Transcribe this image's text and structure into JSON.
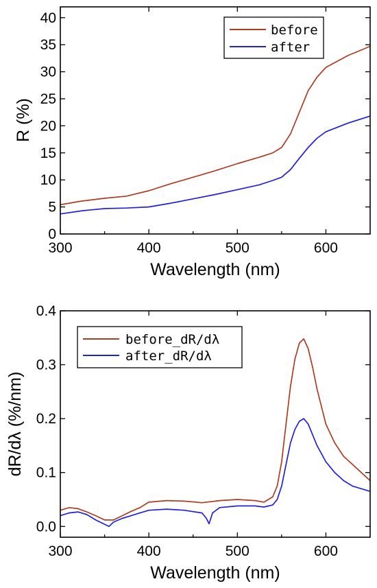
{
  "chart_data": [
    {
      "type": "line",
      "xlabel": "Wavelength (nm)",
      "ylabel": "R (%)",
      "xlim": [
        300,
        650
      ],
      "ylim": [
        0,
        42
      ],
      "xticks": [
        "300",
        "400",
        "500",
        "600"
      ],
      "xtick_values": [
        300,
        400,
        500,
        600
      ],
      "yticks": [
        "0",
        "5",
        "10",
        "15",
        "20",
        "25",
        "30",
        "35",
        "40"
      ],
      "ytick_values": [
        0,
        5,
        10,
        15,
        20,
        25,
        30,
        35,
        40
      ],
      "legend_position": "top-right",
      "series": [
        {
          "name": "before",
          "color": "#b03a1e",
          "x": [
            300,
            325,
            350,
            375,
            400,
            425,
            450,
            475,
            500,
            525,
            540,
            550,
            560,
            570,
            580,
            590,
            600,
            625,
            650
          ],
          "y": [
            5.4,
            6.1,
            6.6,
            7.0,
            8.0,
            9.3,
            10.5,
            11.7,
            13.0,
            14.2,
            15.0,
            16.0,
            18.5,
            22.5,
            26.5,
            29.0,
            30.8,
            33.0,
            34.7
          ]
        },
        {
          "name": "after",
          "color": "#1f1fdd",
          "x": [
            300,
            325,
            350,
            375,
            400,
            425,
            450,
            475,
            500,
            525,
            540,
            550,
            560,
            570,
            580,
            590,
            600,
            625,
            650
          ],
          "y": [
            3.7,
            4.3,
            4.7,
            4.8,
            5.0,
            5.7,
            6.5,
            7.3,
            8.2,
            9.1,
            9.9,
            10.5,
            11.9,
            14.0,
            16.0,
            17.7,
            18.9,
            20.5,
            21.8
          ]
        }
      ]
    },
    {
      "type": "line",
      "xlabel": "Wavelength (nm)",
      "ylabel": "dR/dλ (%/nm)",
      "xlim": [
        300,
        650
      ],
      "ylim": [
        -0.02,
        0.4
      ],
      "xticks": [
        "300",
        "400",
        "500",
        "600"
      ],
      "xtick_values": [
        300,
        400,
        500,
        600
      ],
      "yticks": [
        "0.0",
        "0.1",
        "0.2",
        "0.3",
        "0.4"
      ],
      "ytick_values": [
        0,
        0.1,
        0.2,
        0.3,
        0.4
      ],
      "legend_position": "top-left",
      "series": [
        {
          "name": "before_dR/dλ",
          "color": "#b03a1e",
          "x": [
            300,
            310,
            320,
            330,
            340,
            350,
            360,
            370,
            380,
            390,
            400,
            420,
            440,
            460,
            480,
            500,
            520,
            530,
            540,
            545,
            550,
            555,
            560,
            565,
            570,
            575,
            580,
            585,
            590,
            600,
            610,
            620,
            630,
            640,
            650
          ],
          "y": [
            0.03,
            0.035,
            0.033,
            0.027,
            0.02,
            0.012,
            0.012,
            0.02,
            0.028,
            0.035,
            0.045,
            0.048,
            0.047,
            0.044,
            0.048,
            0.05,
            0.048,
            0.045,
            0.055,
            0.075,
            0.12,
            0.19,
            0.26,
            0.31,
            0.34,
            0.348,
            0.33,
            0.295,
            0.255,
            0.19,
            0.155,
            0.13,
            0.115,
            0.1,
            0.085
          ]
        },
        {
          "name": "after_dR/dλ",
          "color": "#1f1fdd",
          "x": [
            300,
            310,
            320,
            330,
            340,
            350,
            355,
            360,
            370,
            380,
            390,
            400,
            420,
            440,
            460,
            465,
            468,
            472,
            480,
            500,
            520,
            530,
            540,
            545,
            550,
            555,
            560,
            565,
            570,
            575,
            580,
            585,
            590,
            600,
            610,
            620,
            630,
            640,
            650
          ],
          "y": [
            0.02,
            0.025,
            0.027,
            0.022,
            0.012,
            0.004,
            0.0,
            0.008,
            0.015,
            0.02,
            0.025,
            0.03,
            0.032,
            0.03,
            0.025,
            0.015,
            0.005,
            0.025,
            0.035,
            0.038,
            0.038,
            0.036,
            0.04,
            0.05,
            0.075,
            0.115,
            0.155,
            0.18,
            0.195,
            0.2,
            0.19,
            0.17,
            0.15,
            0.12,
            0.1,
            0.085,
            0.075,
            0.07,
            0.065
          ]
        }
      ]
    }
  ]
}
